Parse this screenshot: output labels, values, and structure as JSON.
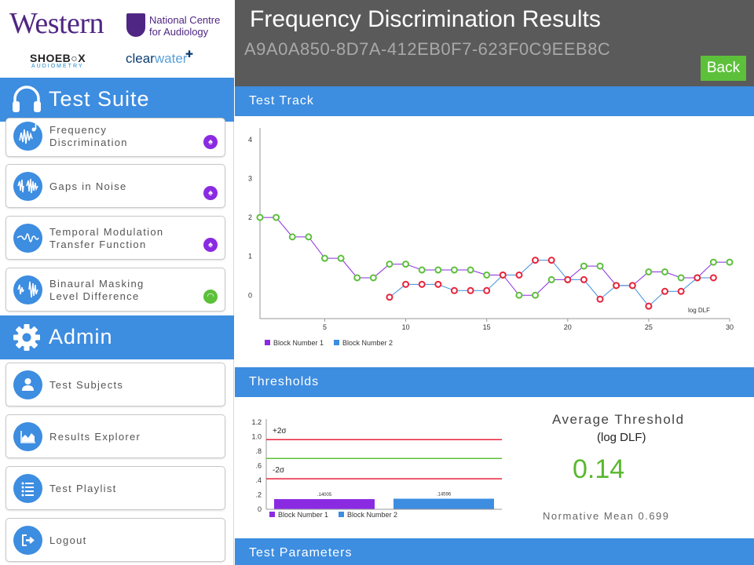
{
  "header": {
    "title": "Frequency Discrimination Results",
    "id": "A9A0A850-8D7A-412EB0F7-623F0C9EEB8C",
    "back_label": "Back"
  },
  "logos": {
    "western": "Western",
    "ncfa": "National Centre\nfor Audiology",
    "shoebox": "SHOEB○X",
    "shoebox_sub": "AUDIOMETRY",
    "clearwater_a": "clear",
    "clearwater_b": "water"
  },
  "sidebar": {
    "test_suite_label": "Test Suite",
    "admin_label": "Admin",
    "tests": [
      {
        "label": "Frequency\nDiscrimination",
        "badge": "ear",
        "badge_color": "#8a2be2"
      },
      {
        "label": "Gaps in Noise",
        "badge": "ear",
        "badge_color": "#8a2be2"
      },
      {
        "label": "Temporal Modulation\nTransfer Function",
        "badge": "ear",
        "badge_color": "#8a2be2"
      },
      {
        "label": "Binaural Masking\nLevel Difference",
        "badge": "both-ears",
        "badge_color": "#5cc03a"
      }
    ],
    "admin_items": [
      {
        "label": "Test Subjects",
        "icon": "person-icon"
      },
      {
        "label": "Results Explorer",
        "icon": "area-chart-icon"
      },
      {
        "label": "Test Playlist",
        "icon": "list-icon"
      },
      {
        "label": "Logout",
        "icon": "logout-icon"
      }
    ]
  },
  "sections": {
    "test_track": "Test Track",
    "thresholds": "Thresholds",
    "test_parameters": "Test Parameters"
  },
  "average": {
    "title": "Average Threshold",
    "units": "(log DLF)",
    "value": "0.14",
    "normative": "Normative Mean 0.699"
  },
  "chart_data": [
    {
      "type": "line",
      "x_ticks": [
        5,
        10,
        15,
        20,
        25,
        30
      ],
      "y_ticks": [
        0,
        1,
        2,
        3,
        4
      ],
      "annotation": "log DLF",
      "series": [
        {
          "name": "Block Number 1",
          "color": "#8a2be2",
          "marker_color": "#5cc03a",
          "x": [
            1,
            2,
            3,
            4,
            5,
            6,
            7,
            8,
            9,
            10,
            11,
            12,
            13,
            14,
            15,
            16,
            17,
            18,
            19,
            20,
            21,
            22,
            23,
            24,
            25,
            26,
            27,
            28,
            29,
            30
          ],
          "y": [
            2.0,
            2.0,
            1.5,
            1.5,
            0.95,
            0.95,
            0.45,
            0.45,
            0.8,
            0.8,
            0.65,
            0.65,
            0.65,
            0.65,
            0.52,
            0.52,
            0.0,
            0.0,
            0.4,
            0.4,
            0.75,
            0.75,
            0.25,
            0.25,
            0.6,
            0.6,
            0.45,
            0.45,
            0.85,
            0.85
          ],
          "marker_x": [
            1,
            2,
            3,
            4,
            5,
            6,
            7,
            8,
            9,
            10,
            11,
            12,
            13,
            14,
            15,
            16,
            17,
            18,
            19,
            20,
            21,
            22,
            23,
            24,
            25,
            26,
            27,
            28,
            29,
            30
          ]
        },
        {
          "name": "Block Number 2",
          "color": "#3d8de0",
          "marker_color": "#e8233a",
          "x": [
            9,
            10,
            11,
            12,
            13,
            14,
            15,
            16,
            17,
            18,
            19,
            20,
            21,
            22,
            23,
            24,
            25,
            26,
            27,
            28,
            29
          ],
          "y": [
            -0.05,
            0.28,
            0.28,
            0.28,
            0.12,
            0.12,
            0.12,
            0.52,
            0.52,
            0.9,
            0.9,
            0.4,
            0.4,
            -0.1,
            0.25,
            0.25,
            -0.28,
            0.1,
            0.1,
            0.45,
            0.45
          ]
        }
      ],
      "xlim": [
        1,
        30
      ],
      "ylim": [
        -0.6,
        4.2
      ]
    },
    {
      "type": "bar",
      "categories": [
        "Block Number 1",
        "Block Number 2"
      ],
      "values": [
        0.14005,
        0.14596
      ],
      "value_labels": [
        ".14005",
        ".14596"
      ],
      "colors": [
        "#8a2be2",
        "#3d8de0"
      ],
      "y_ticks": [
        "0",
        ".2",
        ".4",
        ".6",
        ".8",
        "1.0",
        "1.2"
      ],
      "ylim": [
        0,
        1.2
      ],
      "reference_lines": [
        {
          "label": "+2σ",
          "value": 0.96,
          "color": "#e8233a"
        },
        {
          "label": "",
          "value": 0.7,
          "color": "#5cc03a"
        },
        {
          "label": "-2σ",
          "value": 0.42,
          "color": "#e8233a"
        }
      ]
    }
  ]
}
